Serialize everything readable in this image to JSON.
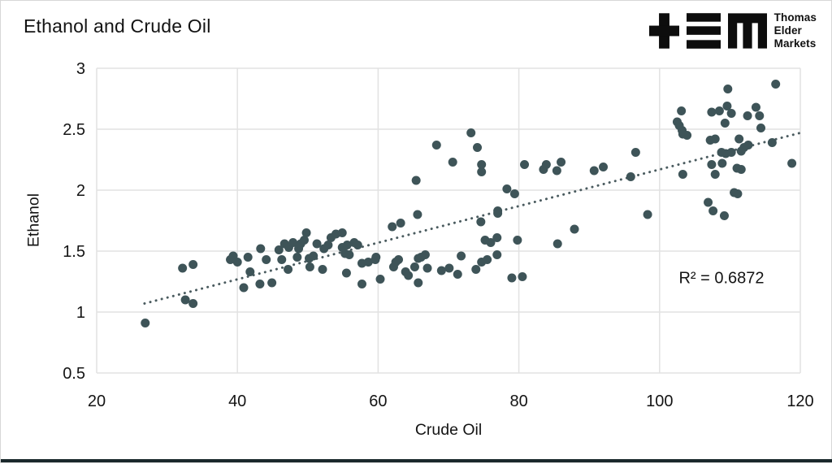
{
  "header": {
    "title": "Ethanol and Crude Oil",
    "logo": {
      "name": "Thomas Elder Markets",
      "lines": [
        "Thomas",
        "Elder",
        "Markets"
      ]
    }
  },
  "colors": {
    "point": "#3e5458",
    "trendline": "#4a5b5f",
    "grid": "#e2e2e2",
    "text": "#141414",
    "bottom_bar": "#1a282b"
  },
  "chart_data": {
    "type": "scatter",
    "title": "Ethanol and Crude Oil",
    "xlabel": "Crude Oil",
    "ylabel": "Ethanol",
    "xlim": [
      20,
      120
    ],
    "ylim": [
      0.5,
      3
    ],
    "x_ticks": [
      "20",
      "40",
      "60",
      "80",
      "100",
      "120"
    ],
    "y_ticks": [
      "3",
      "2.5",
      "2",
      "1.5",
      "1",
      "0.5"
    ],
    "grid": true,
    "legend": "none",
    "annotation": "R² = 0.6872",
    "r_squared": 0.6872,
    "trendline": {
      "style": "dotted",
      "x1": 26.8,
      "y1": 1.07,
      "x2": 120,
      "y2": 2.47
    },
    "points": [
      [
        26.9,
        0.91
      ],
      [
        32.2,
        1.36
      ],
      [
        33.7,
        1.39
      ],
      [
        32.6,
        1.1
      ],
      [
        33.7,
        1.07
      ],
      [
        39.0,
        1.43
      ],
      [
        39.4,
        1.46
      ],
      [
        40.0,
        1.41
      ],
      [
        41.5,
        1.45
      ],
      [
        43.3,
        1.52
      ],
      [
        44.1,
        1.43
      ],
      [
        41.8,
        1.33
      ],
      [
        40.9,
        1.2
      ],
      [
        43.2,
        1.23
      ],
      [
        44.9,
        1.24
      ],
      [
        45.9,
        1.51
      ],
      [
        46.7,
        1.56
      ],
      [
        47.3,
        1.53
      ],
      [
        47.9,
        1.57
      ],
      [
        48.7,
        1.52
      ],
      [
        49.0,
        1.56
      ],
      [
        49.5,
        1.59
      ],
      [
        49.8,
        1.65
      ],
      [
        46.3,
        1.43
      ],
      [
        47.2,
        1.35
      ],
      [
        48.5,
        1.45
      ],
      [
        50.2,
        1.44
      ],
      [
        50.8,
        1.46
      ],
      [
        50.3,
        1.37
      ],
      [
        52.1,
        1.35
      ],
      [
        52.3,
        1.52
      ],
      [
        52.9,
        1.55
      ],
      [
        51.3,
        1.56
      ],
      [
        53.3,
        1.61
      ],
      [
        54.0,
        1.64
      ],
      [
        54.9,
        1.65
      ],
      [
        54.9,
        1.53
      ],
      [
        55.6,
        1.55
      ],
      [
        56.6,
        1.57
      ],
      [
        57.1,
        1.55
      ],
      [
        55.3,
        1.48
      ],
      [
        55.9,
        1.47
      ],
      [
        55.5,
        1.32
      ],
      [
        57.7,
        1.4
      ],
      [
        58.6,
        1.41
      ],
      [
        59.6,
        1.43
      ],
      [
        59.7,
        1.45
      ],
      [
        57.7,
        1.23
      ],
      [
        60.3,
        1.27
      ],
      [
        62.2,
        1.37
      ],
      [
        62.5,
        1.41
      ],
      [
        62.9,
        1.43
      ],
      [
        63.9,
        1.33
      ],
      [
        64.3,
        1.3
      ],
      [
        65.2,
        1.37
      ],
      [
        65.7,
        1.44
      ],
      [
        66.1,
        1.45
      ],
      [
        66.7,
        1.47
      ],
      [
        65.7,
        1.24
      ],
      [
        67.0,
        1.36
      ],
      [
        69.0,
        1.34
      ],
      [
        70.1,
        1.36
      ],
      [
        71.3,
        1.31
      ],
      [
        71.8,
        1.46
      ],
      [
        62.0,
        1.7
      ],
      [
        63.2,
        1.73
      ],
      [
        65.4,
        2.08
      ],
      [
        65.6,
        1.8
      ],
      [
        68.3,
        2.37
      ],
      [
        70.6,
        2.23
      ],
      [
        73.2,
        2.47
      ],
      [
        74.1,
        2.35
      ],
      [
        74.7,
        2.21
      ],
      [
        74.7,
        2.15
      ],
      [
        74.6,
        1.74
      ],
      [
        77.0,
        1.83
      ],
      [
        77.0,
        1.81
      ],
      [
        78.3,
        2.01
      ],
      [
        79.4,
        1.97
      ],
      [
        80.8,
        2.21
      ],
      [
        73.9,
        1.35
      ],
      [
        74.7,
        1.41
      ],
      [
        75.5,
        1.43
      ],
      [
        75.2,
        1.59
      ],
      [
        76.0,
        1.57
      ],
      [
        76.9,
        1.61
      ],
      [
        76.9,
        1.47
      ],
      [
        79.0,
        1.28
      ],
      [
        80.5,
        1.29
      ],
      [
        79.8,
        1.59
      ],
      [
        85.5,
        1.56
      ],
      [
        87.9,
        1.68
      ],
      [
        83.5,
        2.17
      ],
      [
        83.9,
        2.21
      ],
      [
        85.4,
        2.16
      ],
      [
        86.0,
        2.23
      ],
      [
        90.7,
        2.16
      ],
      [
        92.0,
        2.19
      ],
      [
        95.9,
        2.11
      ],
      [
        96.6,
        2.31
      ],
      [
        98.3,
        1.8
      ],
      [
        102.5,
        2.56
      ],
      [
        102.8,
        2.53
      ],
      [
        103.1,
        2.65
      ],
      [
        103.2,
        2.49
      ],
      [
        103.3,
        2.46
      ],
      [
        103.9,
        2.45
      ],
      [
        103.3,
        2.13
      ],
      [
        106.9,
        1.9
      ],
      [
        107.6,
        1.83
      ],
      [
        109.2,
        1.79
      ],
      [
        107.2,
        2.41
      ],
      [
        107.9,
        2.42
      ],
      [
        107.4,
        2.64
      ],
      [
        108.5,
        2.65
      ],
      [
        107.4,
        2.21
      ],
      [
        108.9,
        2.22
      ],
      [
        107.9,
        2.13
      ],
      [
        108.8,
        2.31
      ],
      [
        109.4,
        2.3
      ],
      [
        110.2,
        2.31
      ],
      [
        109.3,
        2.55
      ],
      [
        109.6,
        2.69
      ],
      [
        109.7,
        2.83
      ],
      [
        110.2,
        2.63
      ],
      [
        110.6,
        1.98
      ],
      [
        111.1,
        1.97
      ],
      [
        111.0,
        2.18
      ],
      [
        111.6,
        2.17
      ],
      [
        111.3,
        2.42
      ],
      [
        111.6,
        2.32
      ],
      [
        112.0,
        2.35
      ],
      [
        112.5,
        2.61
      ],
      [
        112.6,
        2.37
      ],
      [
        113.7,
        2.68
      ],
      [
        114.2,
        2.61
      ],
      [
        114.4,
        2.51
      ],
      [
        116.0,
        2.39
      ],
      [
        116.5,
        2.87
      ],
      [
        118.8,
        2.22
      ]
    ]
  }
}
